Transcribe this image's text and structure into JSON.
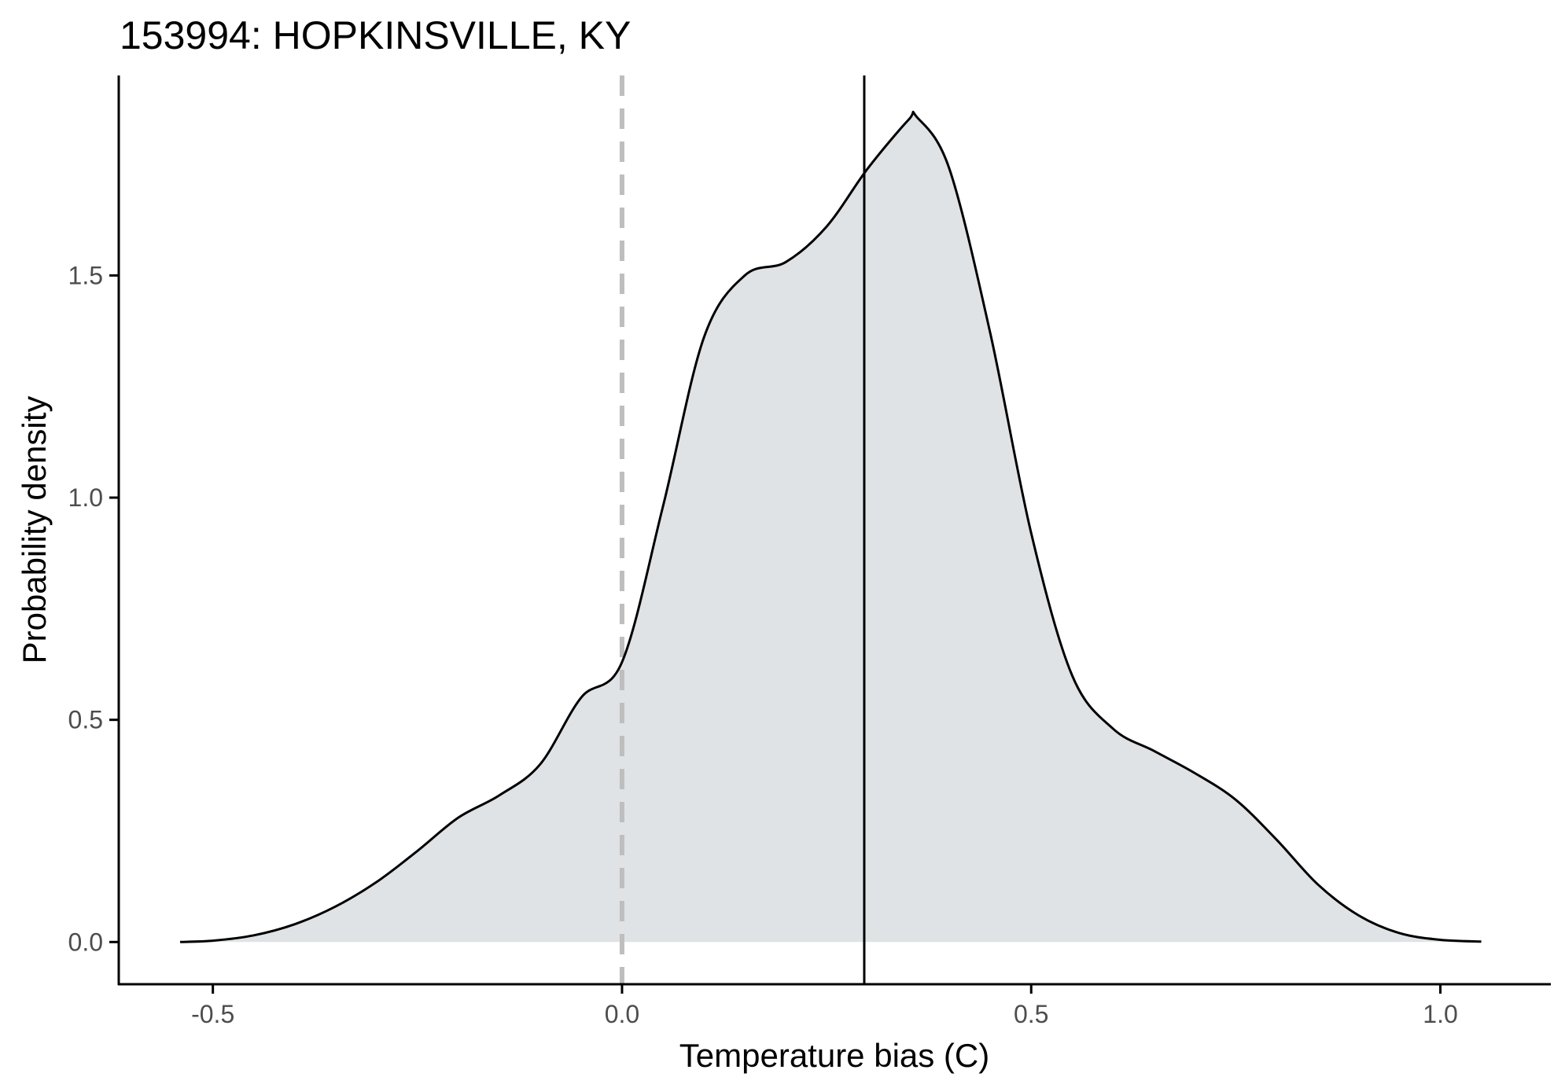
{
  "chart_data": {
    "type": "area",
    "title": "153994: HOPKINSVILLE, KY",
    "xlabel": "Temperature bias (C)",
    "ylabel": "Probability density",
    "xlim": [
      -0.615,
      1.135
    ],
    "ylim": [
      -0.095,
      1.95
    ],
    "x_ticks": [
      -0.5,
      0.0,
      0.5,
      1.0
    ],
    "x_tick_labels": [
      "-0.5",
      "0.0",
      "0.5",
      "1.0"
    ],
    "y_ticks": [
      0.0,
      0.5,
      1.0,
      1.5
    ],
    "y_tick_labels": [
      "0.0",
      "0.5",
      "1.0",
      "1.5"
    ],
    "grid": false,
    "legend": "none",
    "series": [
      {
        "x": [
          -0.54,
          -0.5,
          -0.45,
          -0.4,
          -0.35,
          -0.3,
          -0.25,
          -0.2,
          -0.15,
          -0.1,
          -0.05,
          0.0,
          0.05,
          0.1,
          0.15,
          0.2,
          0.25,
          0.3,
          0.35,
          0.36,
          0.4,
          0.45,
          0.5,
          0.55,
          0.6,
          0.65,
          0.7,
          0.75,
          0.8,
          0.85,
          0.9,
          0.95,
          1.0,
          1.05
        ],
        "y": [
          0.0,
          0.003,
          0.015,
          0.04,
          0.08,
          0.135,
          0.205,
          0.28,
          0.33,
          0.4,
          0.55,
          0.63,
          0.98,
          1.36,
          1.5,
          1.53,
          1.61,
          1.74,
          1.85,
          1.857,
          1.74,
          1.37,
          0.92,
          0.6,
          0.48,
          0.43,
          0.38,
          0.32,
          0.23,
          0.13,
          0.06,
          0.02,
          0.005,
          0.001
        ]
      }
    ],
    "reference_lines": [
      {
        "x": 0.0,
        "style": "dashed"
      },
      {
        "x": 0.296,
        "style": "solid"
      }
    ],
    "colors": {
      "fill": "#e0e3e5",
      "line": "#000000",
      "zero_line": "#bebebe",
      "axis": "#000000",
      "tick_label": "#4d4d4d"
    }
  }
}
